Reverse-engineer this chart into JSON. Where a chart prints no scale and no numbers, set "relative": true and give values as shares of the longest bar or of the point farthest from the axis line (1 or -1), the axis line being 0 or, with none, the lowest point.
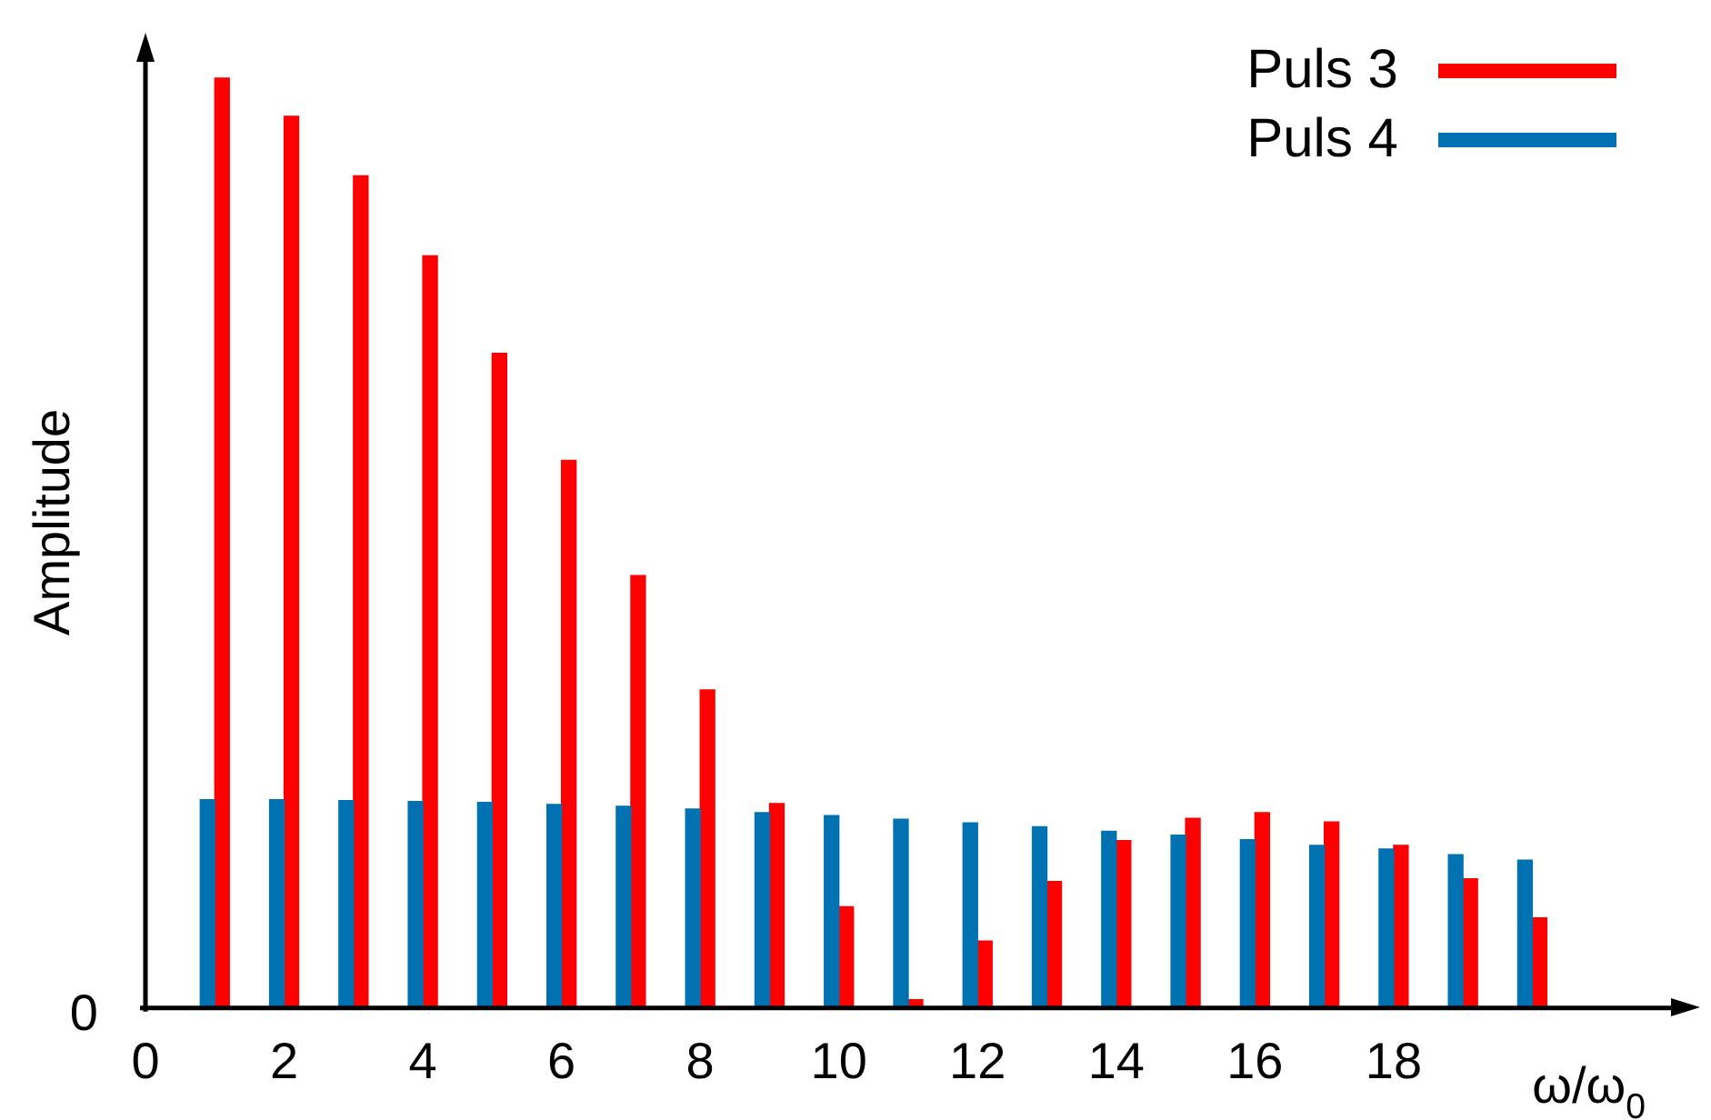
{
  "chart_data": {
    "type": "bar",
    "relative": true,
    "xlabel": "ω/ω$_{0}$",
    "ylabel": "Amplitude",
    "annotations": [
      "0"
    ],
    "x": [
      1,
      2,
      3,
      4,
      5,
      6,
      7,
      8,
      9,
      10,
      11,
      12,
      13,
      14,
      15,
      16,
      17,
      18,
      19,
      20
    ],
    "xlim": [
      0,
      22
    ],
    "xticks": [
      0,
      2,
      4,
      6,
      8,
      10,
      12,
      14,
      16,
      18
    ],
    "legend": "top right",
    "series": [
      {
        "name": "Puls 4",
        "color": "#0072b2",
        "values": [
          0.224,
          0.224,
          0.223,
          0.222,
          0.221,
          0.219,
          0.217,
          0.214,
          0.21,
          0.207,
          0.203,
          0.199,
          0.195,
          0.19,
          0.186,
          0.181,
          0.175,
          0.171,
          0.165,
          0.159
        ]
      },
      {
        "name": "Puls 3",
        "color": "#ff0000",
        "values": [
          1,
          0.959,
          0.895,
          0.809,
          0.704,
          0.589,
          0.465,
          0.342,
          0.22,
          0.109,
          0.009,
          0.072,
          0.136,
          0.18,
          0.204,
          0.21,
          0.2,
          0.175,
          0.139,
          0.097
        ]
      }
    ]
  }
}
